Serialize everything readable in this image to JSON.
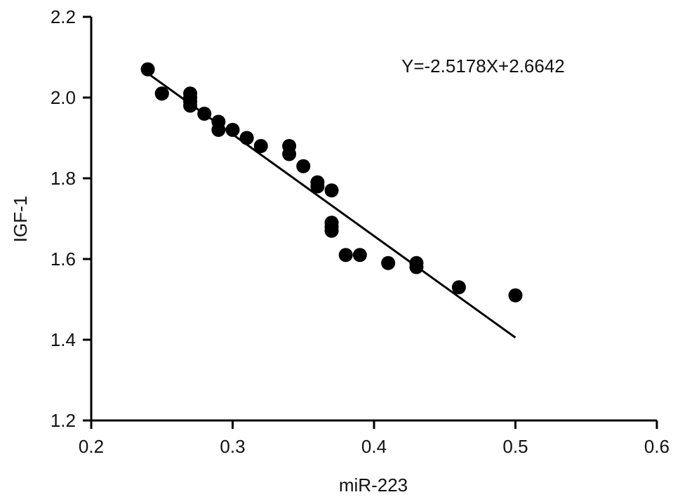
{
  "chart_data": {
    "type": "scatter",
    "title": "",
    "xlabel": "miR-223",
    "ylabel": "IGF-1",
    "xlim": [
      0.2,
      0.6
    ],
    "ylim": [
      1.2,
      2.2
    ],
    "x_ticks": [
      "0.2",
      "0.3",
      "0.4",
      "0.5",
      "0.6"
    ],
    "y_ticks": [
      "1.2",
      "1.4",
      "1.6",
      "1.8",
      "2.0",
      "2.2"
    ],
    "grid": false,
    "legend": "none",
    "annotation": "Y=-2.5178X+2.6642",
    "regression": {
      "slope": -2.5178,
      "intercept": 2.6642,
      "x_range": [
        0.24,
        0.5
      ]
    },
    "series": [
      {
        "x": [
          0.24,
          0.25,
          0.25,
          0.27,
          0.27,
          0.27,
          0.27,
          0.28,
          0.29,
          0.29,
          0.3,
          0.31,
          0.32,
          0.34,
          0.34,
          0.35,
          0.36,
          0.36,
          0.37,
          0.37,
          0.37,
          0.37,
          0.38,
          0.39,
          0.41,
          0.43,
          0.43,
          0.46,
          0.5
        ],
        "y": [
          2.07,
          2.01,
          2.01,
          2.01,
          2.0,
          1.99,
          1.98,
          1.96,
          1.94,
          1.92,
          1.92,
          1.9,
          1.88,
          1.88,
          1.86,
          1.83,
          1.79,
          1.78,
          1.77,
          1.69,
          1.68,
          1.67,
          1.61,
          1.61,
          1.59,
          1.59,
          1.58,
          1.53,
          1.51
        ]
      }
    ]
  }
}
